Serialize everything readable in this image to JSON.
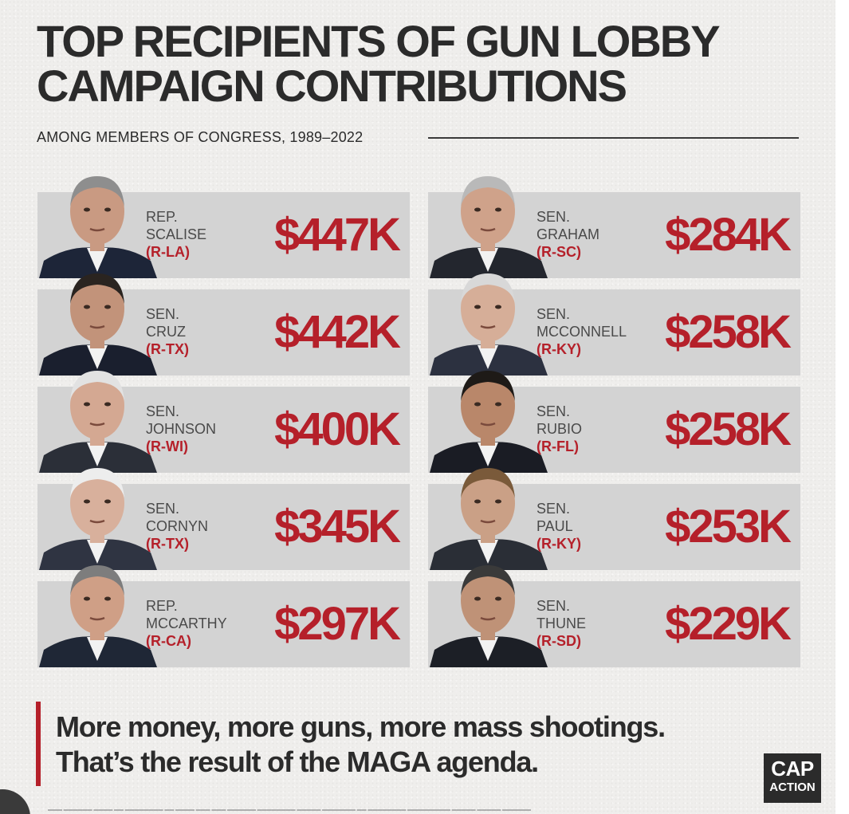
{
  "title": "TOP RECIPIENTS OF GUN LOBBY CAMPAIGN CONTRIBUTIONS",
  "subtitle": "AMONG MEMBERS OF CONGRESS, 1989–2022",
  "colors": {
    "accent": "#b5202a",
    "card": "#d3d3d3",
    "text": "#2b2b2b"
  },
  "recipients": [
    {
      "title": "REP.",
      "name": "SCALISE",
      "party": "(R-LA)",
      "amount": "$447K"
    },
    {
      "title": "SEN.",
      "name": "CRUZ",
      "party": "(R-TX)",
      "amount": "$442K"
    },
    {
      "title": "SEN.",
      "name": "JOHNSON",
      "party": "(R-WI)",
      "amount": "$400K"
    },
    {
      "title": "SEN.",
      "name": "CORNYN",
      "party": "(R-TX)",
      "amount": "$345K"
    },
    {
      "title": "REP.",
      "name": "MCCARTHY",
      "party": "(R-CA)",
      "amount": "$297K"
    },
    {
      "title": "SEN.",
      "name": "GRAHAM",
      "party": "(R-SC)",
      "amount": "$284K"
    },
    {
      "title": "SEN.",
      "name": "MCCONNELL",
      "party": "(R-KY)",
      "amount": "$258K"
    },
    {
      "title": "SEN.",
      "name": "RUBIO",
      "party": "(R-FL)",
      "amount": "$258K"
    },
    {
      "title": "SEN.",
      "name": "PAUL",
      "party": "(R-KY)",
      "amount": "$253K"
    },
    {
      "title": "SEN.",
      "name": "THUNE",
      "party": "(R-SD)",
      "amount": "$229K"
    }
  ],
  "tagline": {
    "line1": "More money, more guns, more mass shootings.",
    "line2": "That’s the result of the MAGA agenda."
  },
  "logo": {
    "line1": "CAP",
    "line2": "ACTION"
  }
}
